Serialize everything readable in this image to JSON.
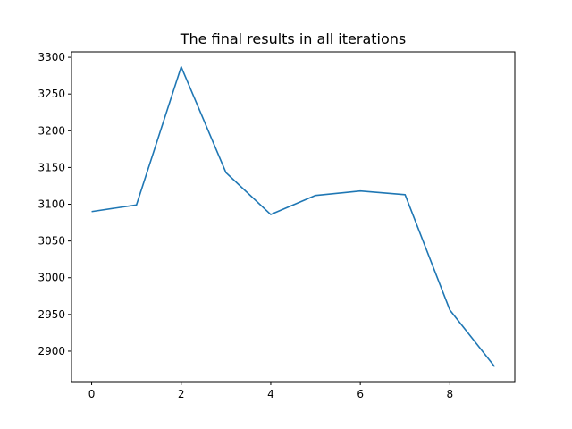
{
  "chart_data": {
    "type": "line",
    "title": "The final results in all iterations",
    "xlabel": "",
    "ylabel": "",
    "x": [
      0,
      1,
      2,
      3,
      4,
      5,
      6,
      7,
      8,
      9
    ],
    "series": [
      {
        "values": [
          3090,
          3099,
          3287,
          3143,
          3086,
          3112,
          3118,
          3113,
          2956,
          2879
        ],
        "color": "#1f77b4"
      }
    ],
    "xlim": [
      -0.45,
      9.45
    ],
    "ylim": [
      2858.6,
      3307.4
    ],
    "xticks": [
      0,
      2,
      4,
      6,
      8
    ],
    "yticks": [
      2900,
      2950,
      3000,
      3050,
      3100,
      3150,
      3200,
      3250,
      3300
    ],
    "grid": false,
    "legend": "none"
  }
}
